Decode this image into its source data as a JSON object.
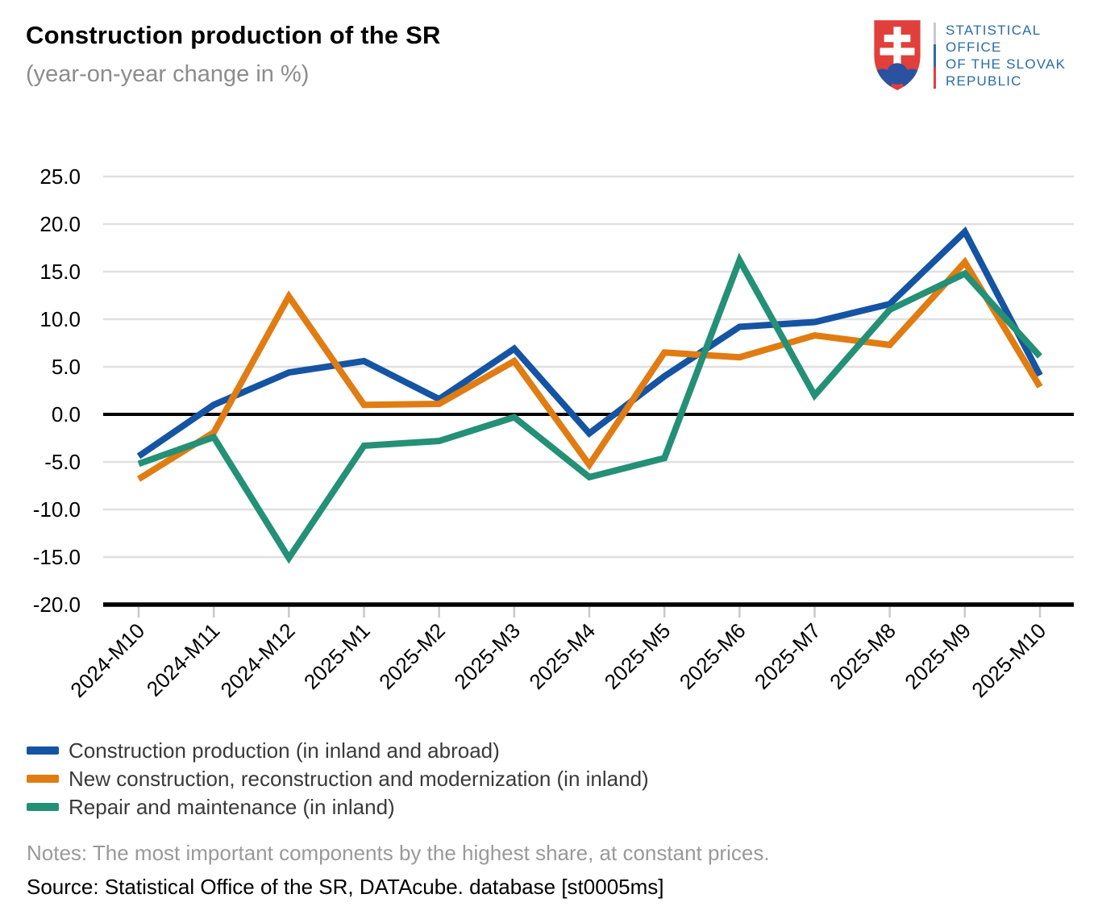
{
  "header": {
    "title": "Construction production of the SR",
    "subtitle": "(year-on-year change in %)"
  },
  "logo": {
    "lines": [
      "STATISTICAL",
      "OFFICE",
      "OF THE SLOVAK",
      "REPUBLIC"
    ],
    "text_color": "#2a6ba8",
    "shield_red": "#e13f3b",
    "shield_blue": "#2a52a0"
  },
  "chart_data": {
    "type": "line",
    "title": "Construction production of the SR (year-on-year change in %)",
    "categories": [
      "2024-M10",
      "2024-M11",
      "2024-M12",
      "2025-M1",
      "2025-M2",
      "2025-M3",
      "2025-M4",
      "2025-M5",
      "2025-M6",
      "2025-M7",
      "2025-M8",
      "2025-M9",
      "2025-M10"
    ],
    "series": [
      {
        "name": "Construction production (in inland and abroad)",
        "color": "#1554a3",
        "values": [
          -4.4,
          1.0,
          4.4,
          5.6,
          1.6,
          6.9,
          -2.0,
          4.0,
          9.2,
          9.7,
          11.6,
          19.2,
          4.1
        ]
      },
      {
        "name": "New construction, reconstruction and modernization (in inland)",
        "color": "#e07c12",
        "values": [
          -6.8,
          -1.9,
          12.4,
          1.0,
          1.1,
          5.6,
          -5.3,
          6.5,
          6.0,
          8.3,
          7.3,
          16.0,
          2.9
        ]
      },
      {
        "name": "Repair and maintenance (in inland)",
        "color": "#249076",
        "values": [
          -5.2,
          -2.4,
          -15.1,
          -3.3,
          -2.8,
          -0.3,
          -6.6,
          -4.6,
          16.2,
          2.0,
          11.0,
          14.8,
          6.1
        ]
      }
    ],
    "ylim": [
      -20,
      25
    ],
    "ytick_step": 5,
    "ytick_labels": [
      "25.0",
      "20.0",
      "15.0",
      "10.0",
      "5.0",
      "0.0",
      "-5.0",
      "-10.0",
      "-15.0",
      "-20.0"
    ],
    "xlabel": "",
    "ylabel": "",
    "grid": true,
    "zero_line": true,
    "legend_position": "bottom-left",
    "grid_color": "#e0e0e0",
    "axis_color": "#000000",
    "tick_color": "#c9c9c9"
  },
  "footer": {
    "notes": "Notes: The most important components by the highest share, at constant prices.",
    "source": "Source: Statistical Office of the SR, DATAcube. database [st0005ms]"
  }
}
